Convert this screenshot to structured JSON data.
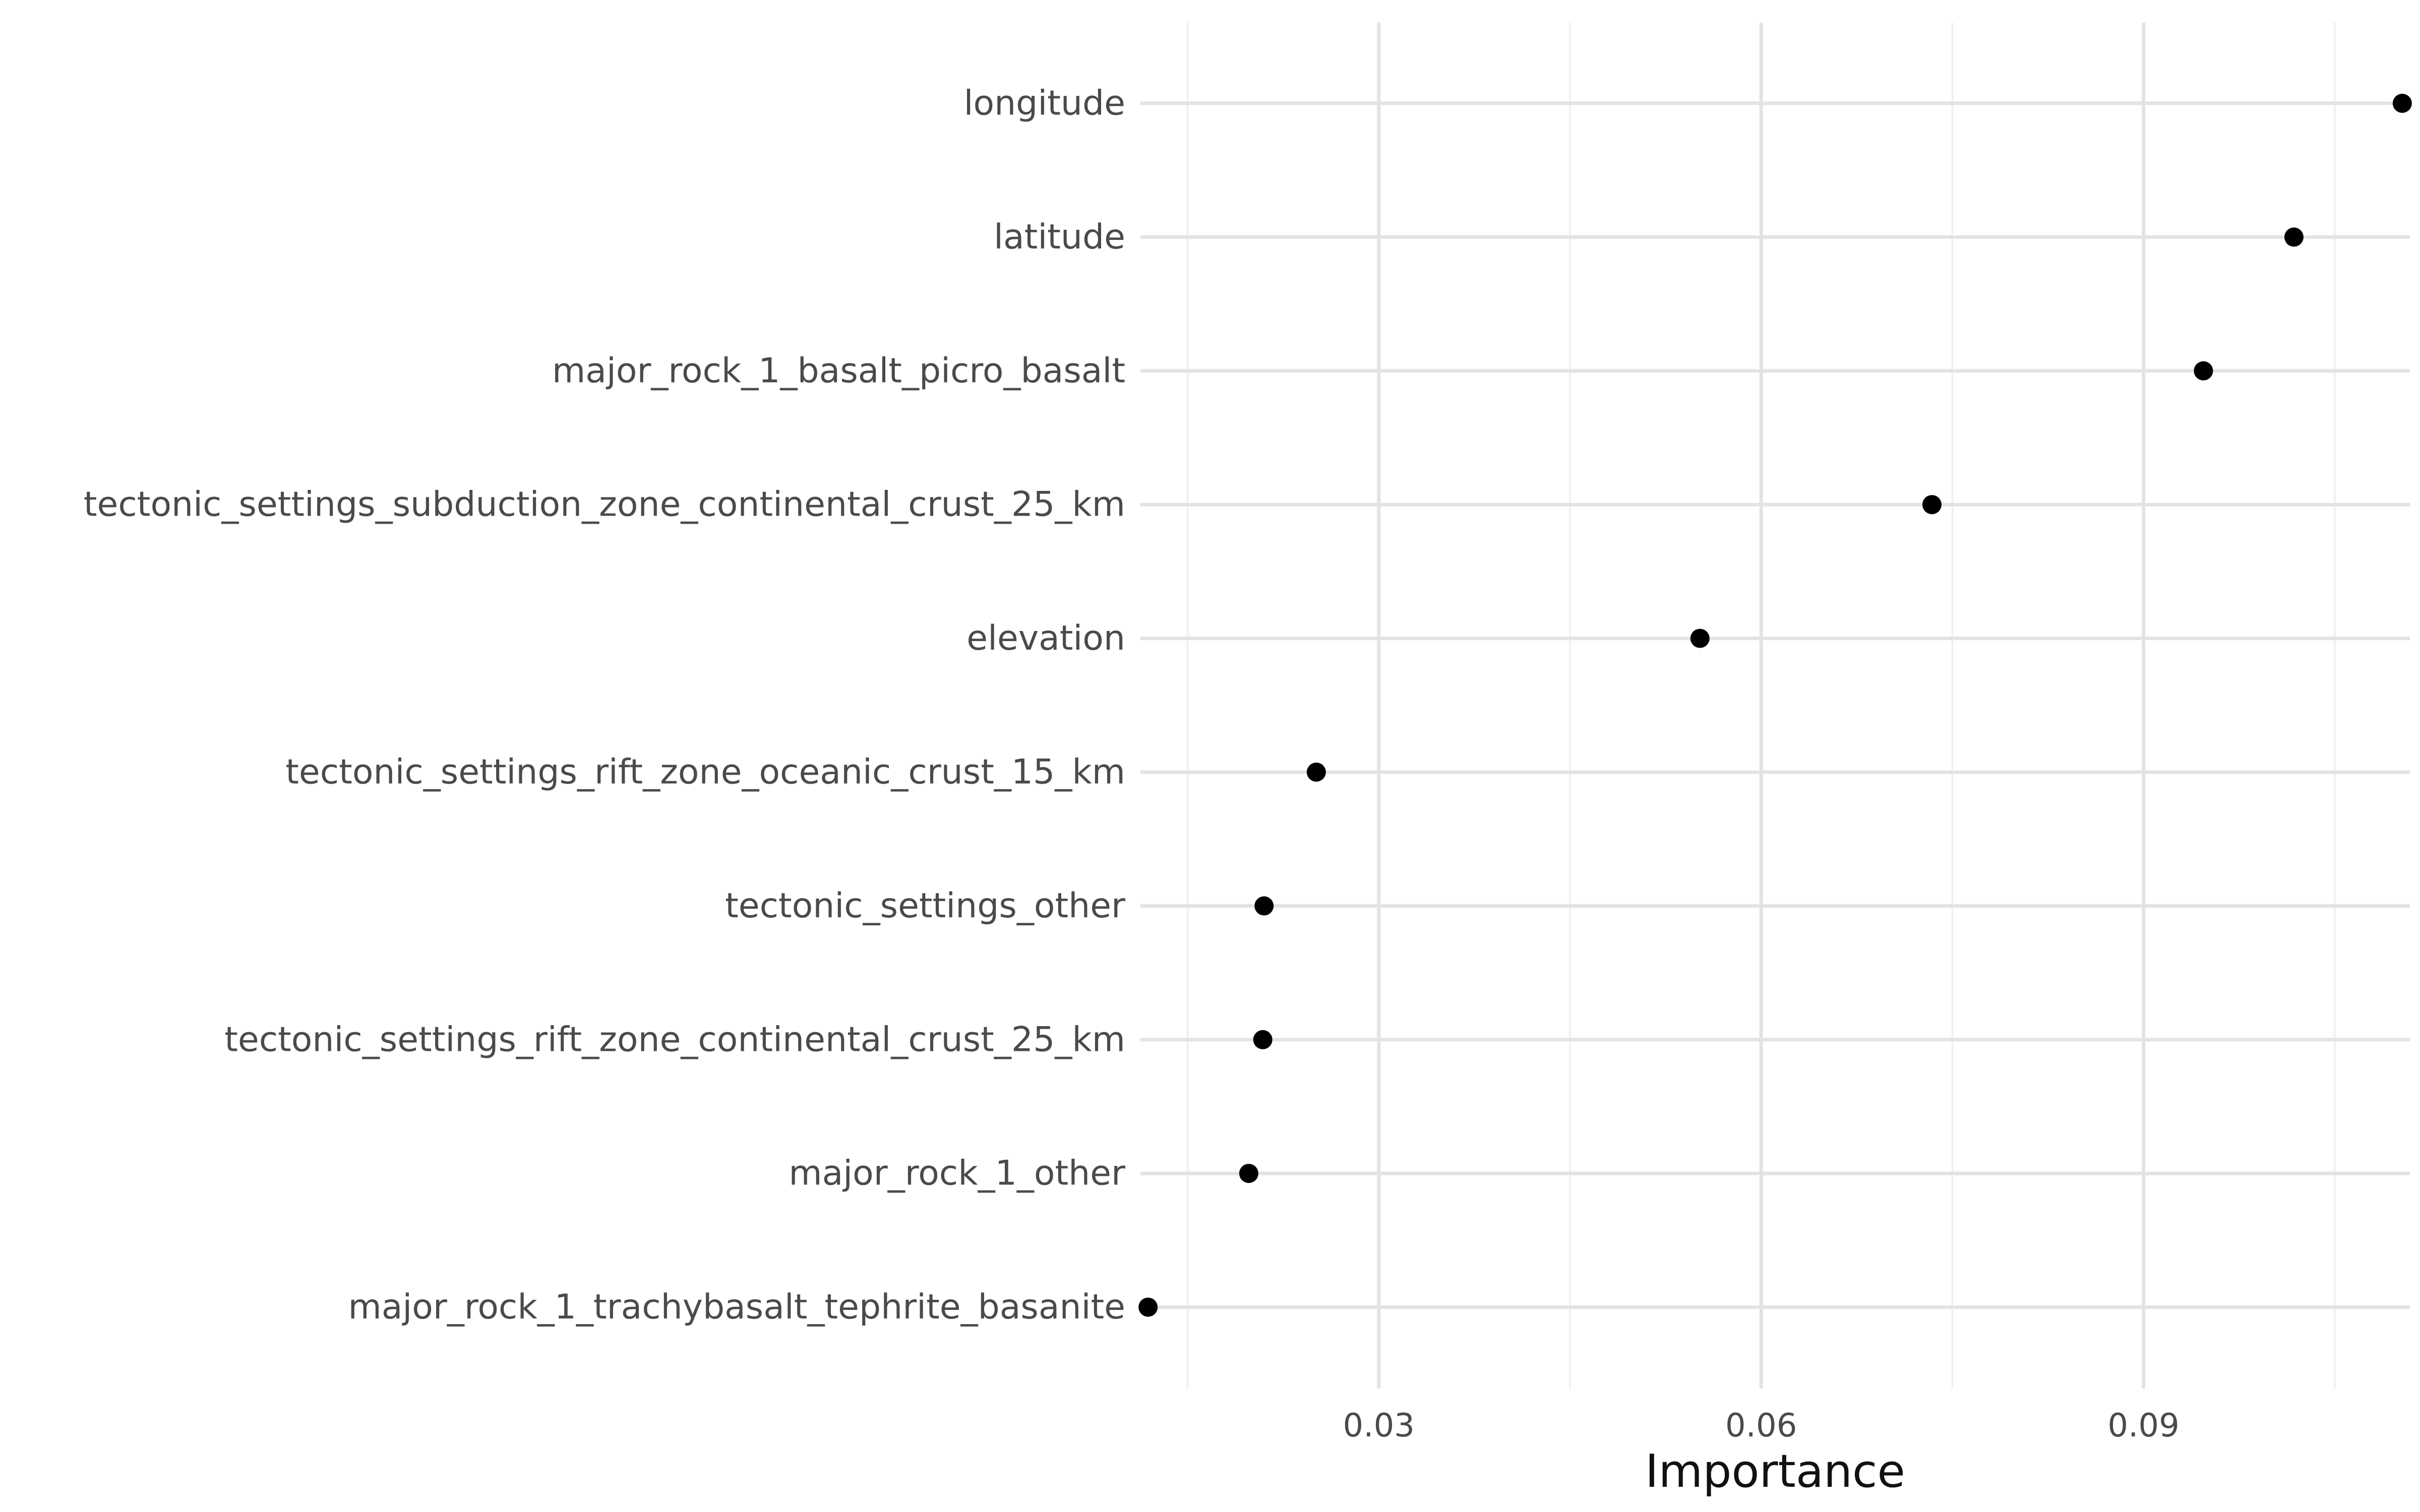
{
  "chart_data": {
    "type": "scatter",
    "orientation": "horizontal",
    "categories": [
      "longitude",
      "latitude",
      "major_rock_1_basalt_picro_basalt",
      "tectonic_settings_subduction_zone_continental_crust_25_km",
      "elevation",
      "tectonic_settings_rift_zone_oceanic_crust_15_km",
      "tectonic_settings_other",
      "tectonic_settings_rift_zone_continental_crust_25_km",
      "major_rock_1_other",
      "major_rock_1_trachybasalt_tephrite_basanite"
    ],
    "values": [
      0.1103,
      0.1018,
      0.0947,
      0.0734,
      0.0552,
      0.0251,
      0.021,
      0.0209,
      0.0198,
      0.0119
    ],
    "xlabel": "Importance",
    "ylabel": "",
    "xlim": [
      0.0113,
      0.1109
    ],
    "xticks": [
      0.03,
      0.06,
      0.09
    ],
    "xtick_labels": [
      "0.03",
      "0.06",
      "0.09"
    ],
    "grid": true,
    "point_color": "#000000",
    "grid_color": "#e3e3e3"
  }
}
